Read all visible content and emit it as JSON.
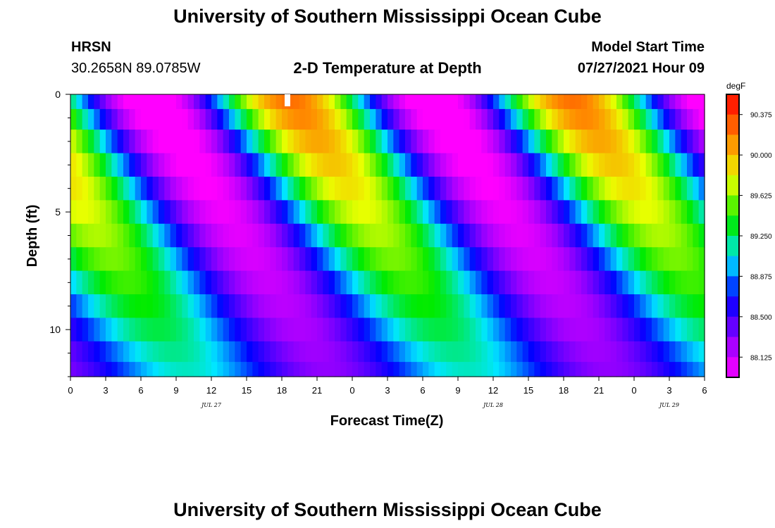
{
  "header": {
    "title": "University of Southern Mississippi Ocean Cube",
    "footer_title": "University of Southern Mississippi Ocean Cube",
    "station_name": "HRSN",
    "station_coords": "30.2658N  89.0785W",
    "model_start_label": "Model Start Time",
    "model_start_value": "07/27/2021 Hour 09"
  },
  "chart_data": {
    "type": "heatmap",
    "title": "2-D Temperature at Depth",
    "xlabel": "Forecast Time(Z)",
    "ylabel": "Depth (ft)",
    "x_range_hours": [
      0,
      54
    ],
    "ylim": [
      0,
      12
    ],
    "x_ticks": [
      {
        "h": 0,
        "label": "0"
      },
      {
        "h": 3,
        "label": "3"
      },
      {
        "h": 6,
        "label": "6"
      },
      {
        "h": 9,
        "label": "9"
      },
      {
        "h": 12,
        "label": "12"
      },
      {
        "h": 15,
        "label": "15"
      },
      {
        "h": 18,
        "label": "18"
      },
      {
        "h": 21,
        "label": "21"
      },
      {
        "h": 24,
        "label": "0"
      },
      {
        "h": 27,
        "label": "3"
      },
      {
        "h": 30,
        "label": "6"
      },
      {
        "h": 33,
        "label": "9"
      },
      {
        "h": 36,
        "label": "12"
      },
      {
        "h": 39,
        "label": "15"
      },
      {
        "h": 42,
        "label": "18"
      },
      {
        "h": 45,
        "label": "21"
      },
      {
        "h": 48,
        "label": "0"
      },
      {
        "h": 51,
        "label": "3"
      },
      {
        "h": 54,
        "label": "6"
      }
    ],
    "date_labels": [
      {
        "h": 12,
        "label": "JUL 27"
      },
      {
        "h": 36,
        "label": "JUL 28"
      },
      {
        "h": 51,
        "label": "JUL 29"
      }
    ],
    "y_ticks": [
      {
        "v": 0,
        "label": "0"
      },
      {
        "v": 5,
        "label": "5"
      },
      {
        "v": 10,
        "label": "10"
      }
    ],
    "y_minor_ticks": [
      1,
      2,
      3,
      4,
      6,
      7,
      8,
      9,
      11,
      12
    ],
    "depth_levels": [
      0.25,
      1,
      2,
      3,
      4,
      5,
      6,
      7,
      8,
      9,
      10,
      11,
      11.75
    ],
    "colorbar": {
      "unit": "degF",
      "min": 87.9375,
      "max": 90.5625,
      "ticks": [
        "90.375",
        "90.000",
        "89.625",
        "89.250",
        "88.875",
        "88.500",
        "88.125"
      ]
    },
    "temperature_model": {
      "surface_mean": 89.0,
      "surface_amplitude": 1.25,
      "bottom_mean": 88.7,
      "bottom_amplitude": 0.4,
      "peak_hour_surface": 18.5,
      "period_hours": 24,
      "lag_per_ft_hours": 1.3
    }
  }
}
